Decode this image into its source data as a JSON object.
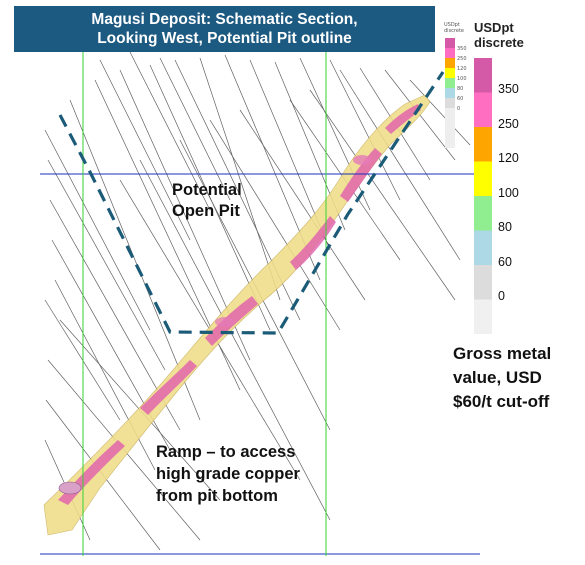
{
  "title": {
    "line1": "Magusi Deposit: Schematic Section,",
    "line2": "Looking West, Potential Pit outline"
  },
  "legend": {
    "title_line1": "USDpt",
    "title_line2": "discrete",
    "bins": [
      {
        "label": "350",
        "color": "#d45aa8"
      },
      {
        "label": "250",
        "color": "#ff6ec0"
      },
      {
        "label": "120",
        "color": "#ffa500"
      },
      {
        "label": "100",
        "color": "#ffff00"
      },
      {
        "label": "80",
        "color": "#90ee90"
      },
      {
        "label": "60",
        "color": "#add8e6"
      },
      {
        "label": "0",
        "color": "#dcdcdc"
      },
      {
        "label": "",
        "color": "#f0f0f0"
      }
    ]
  },
  "mini_legend": {
    "title_line1": "USDpt",
    "title_line2": "discrete",
    "labels": [
      "350",
      "250",
      "120",
      "100",
      "80",
      "60",
      "0"
    ]
  },
  "annotations": {
    "pit_line1": "Potential",
    "pit_line2": "Open Pit",
    "ramp_line1": "Ramp – to access",
    "ramp_line2": "high grade copper",
    "ramp_line3": "from pit bottom",
    "gross_line1": "Gross metal",
    "gross_line2": "value, USD",
    "gross_line3": "$60/t cut-off"
  },
  "colors": {
    "title_bg": "#1d5a82",
    "pit_outline": "#1b5b78",
    "grid_blue": "#1a2fbf",
    "grid_green": "#36d336",
    "orebody": "#f0dd88",
    "high_grade": "#e062ad"
  }
}
